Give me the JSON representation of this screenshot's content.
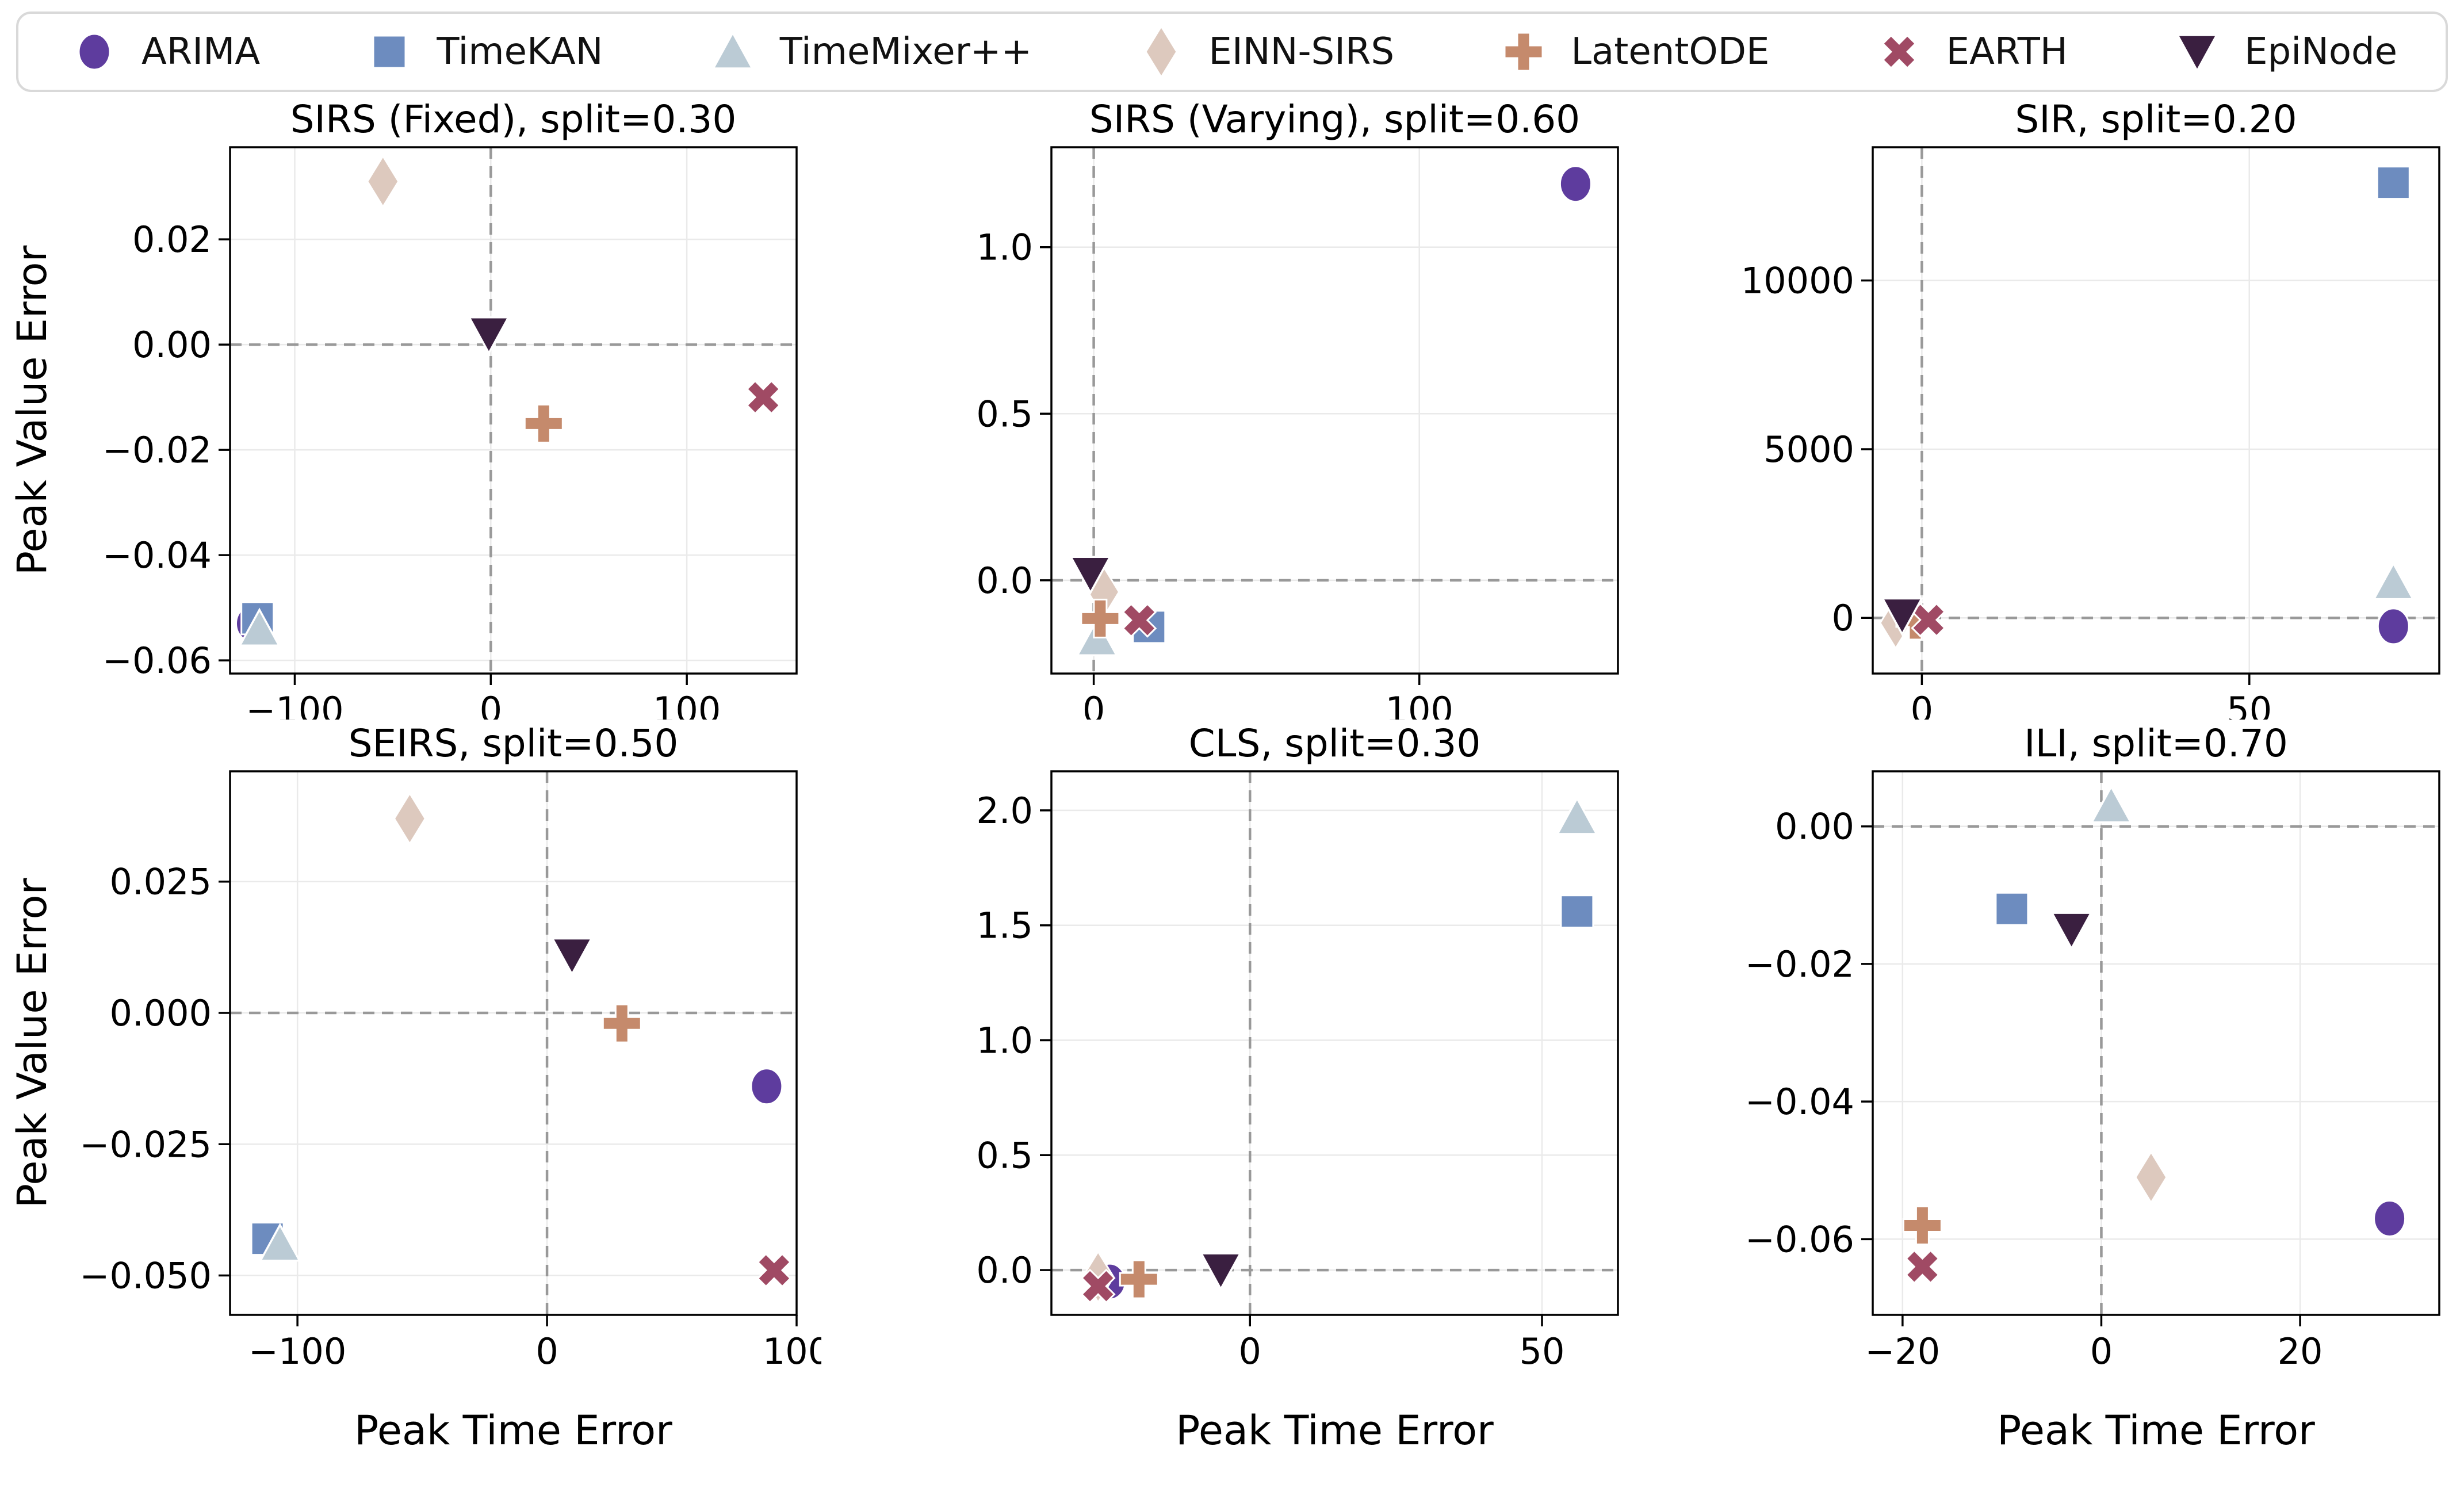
{
  "legend": {
    "items": [
      {
        "label": "ARIMA",
        "marker": "circle",
        "color": "#5e3c9e"
      },
      {
        "label": "TimeKAN",
        "marker": "square",
        "color": "#6d8cbf"
      },
      {
        "label": "TimeMixer++",
        "marker": "triangle-up",
        "color": "#bbcbd5"
      },
      {
        "label": "EINN-SIRS",
        "marker": "diamond",
        "color": "#ddc9be"
      },
      {
        "label": "LatentODE",
        "marker": "plus",
        "color": "#c58a6c"
      },
      {
        "label": "EARTH",
        "marker": "x",
        "color": "#a04a64"
      },
      {
        "label": "EpiNode",
        "marker": "triangle-down",
        "color": "#3a1f40"
      }
    ]
  },
  "axis_labels": {
    "x": "Peak Time Error",
    "y": "Peak Value Error"
  },
  "style": {
    "grid_color": "#eaeaea",
    "zero_line_color": "#999999",
    "spine_color": "#000000",
    "marker_edge": "#ffffff"
  },
  "chart_data": [
    {
      "type": "scatter",
      "title": "SIRS (Fixed), split=0.30",
      "xlabel": "",
      "ylabel": "Peak Value Error",
      "xlim": [
        -133,
        156
      ],
      "ylim": [
        -0.0625,
        0.0375
      ],
      "xticks": [
        -100,
        0,
        100
      ],
      "xtick_labels": [
        "−100",
        "0",
        "100"
      ],
      "yticks": [
        0.02,
        0.0,
        -0.02,
        -0.04,
        -0.06
      ],
      "ytick_labels": [
        "0.02",
        "0.00",
        "−0.02",
        "−0.04",
        "−0.06"
      ],
      "grid": true,
      "zero_lines": true,
      "series": [
        {
          "name": "ARIMA",
          "x": -122,
          "y": -0.053
        },
        {
          "name": "TimeKAN",
          "x": -119,
          "y": -0.052
        },
        {
          "name": "TimeMixer++",
          "x": -118,
          "y": -0.054
        },
        {
          "name": "EINN-SIRS",
          "x": -55,
          "y": 0.031
        },
        {
          "name": "LatentODE",
          "x": 27,
          "y": -0.015
        },
        {
          "name": "EARTH",
          "x": 139,
          "y": -0.01
        },
        {
          "name": "EpiNode",
          "x": -1,
          "y": 0.002
        }
      ]
    },
    {
      "type": "scatter",
      "title": "SIRS (Varying), split=0.60",
      "xlabel": "",
      "ylabel": "",
      "xlim": [
        -13,
        161
      ],
      "ylim": [
        -0.28,
        1.3
      ],
      "xticks": [
        0,
        100
      ],
      "xtick_labels": [
        "0",
        "100"
      ],
      "yticks": [
        1.0,
        0.5,
        0.0
      ],
      "ytick_labels": [
        "1.0",
        "0.5",
        "0.0"
      ],
      "grid": true,
      "zero_lines": true,
      "series": [
        {
          "name": "ARIMA",
          "x": 148,
          "y": 1.19
        },
        {
          "name": "TimeKAN",
          "x": 17,
          "y": -0.14
        },
        {
          "name": "TimeMixer++",
          "x": 1,
          "y": -0.175
        },
        {
          "name": "EINN-SIRS",
          "x": 3,
          "y": -0.035
        },
        {
          "name": "LatentODE",
          "x": 2,
          "y": -0.115
        },
        {
          "name": "EARTH",
          "x": 14,
          "y": -0.12
        },
        {
          "name": "EpiNode",
          "x": -1,
          "y": 0.02
        }
      ]
    },
    {
      "type": "scatter",
      "title": "SIR, split=0.20",
      "xlabel": "",
      "ylabel": "",
      "xlim": [
        -7.5,
        79
      ],
      "ylim": [
        -1650,
        13950
      ],
      "xticks": [
        0,
        50
      ],
      "xtick_labels": [
        "0",
        "50"
      ],
      "yticks": [
        10000,
        5000,
        0
      ],
      "ytick_labels": [
        "10000",
        "5000",
        "0"
      ],
      "grid": true,
      "zero_lines": true,
      "series": [
        {
          "name": "ARIMA",
          "x": 72,
          "y": -250
        },
        {
          "name": "TimeKAN",
          "x": 72,
          "y": 12900
        },
        {
          "name": "TimeMixer++",
          "x": 72,
          "y": 1050
        },
        {
          "name": "EINN-SIRS",
          "x": -4,
          "y": -150
        },
        {
          "name": "LatentODE",
          "x": -1,
          "y": -80
        },
        {
          "name": "EARTH",
          "x": 1,
          "y": -60
        },
        {
          "name": "EpiNode",
          "x": -3,
          "y": 80
        }
      ]
    },
    {
      "type": "scatter",
      "title": "SEIRS, split=0.50",
      "xlabel": "Peak Time Error",
      "ylabel": "Peak Value Error",
      "xlim": [
        -127,
        100
      ],
      "ylim": [
        -0.0575,
        0.046
      ],
      "xticks": [
        -100,
        0,
        100
      ],
      "xtick_labels": [
        "−100",
        "0",
        "100"
      ],
      "yticks": [
        0.025,
        0.0,
        -0.025,
        -0.05
      ],
      "ytick_labels": [
        "0.025",
        "0.000",
        "−0.025",
        "−0.050"
      ],
      "grid": true,
      "zero_lines": true,
      "series": [
        {
          "name": "ARIMA",
          "x": 88,
          "y": -0.014
        },
        {
          "name": "TimeKAN",
          "x": -112,
          "y": -0.043
        },
        {
          "name": "TimeMixer++",
          "x": -107,
          "y": -0.044
        },
        {
          "name": "EINN-SIRS",
          "x": -55,
          "y": 0.037
        },
        {
          "name": "LatentODE",
          "x": 30,
          "y": -0.002
        },
        {
          "name": "EARTH",
          "x": 91,
          "y": -0.049
        },
        {
          "name": "EpiNode",
          "x": 10,
          "y": 0.011
        }
      ]
    },
    {
      "type": "scatter",
      "title": "CLS, split=0.30",
      "xlabel": "Peak Time Error",
      "ylabel": "",
      "xlim": [
        -34,
        63
      ],
      "ylim": [
        -0.195,
        2.17
      ],
      "xticks": [
        0,
        50
      ],
      "xtick_labels": [
        "0",
        "50"
      ],
      "yticks": [
        2.0,
        1.5,
        1.0,
        0.5,
        0.0
      ],
      "ytick_labels": [
        "2.0",
        "1.5",
        "1.0",
        "0.5",
        "0.0"
      ],
      "grid": true,
      "zero_lines": true,
      "series": [
        {
          "name": "ARIMA",
          "x": -24,
          "y": -0.05
        },
        {
          "name": "TimeKAN",
          "x": 56,
          "y": 1.56
        },
        {
          "name": "TimeMixer++",
          "x": 56,
          "y": 1.97
        },
        {
          "name": "EINN-SIRS",
          "x": -26,
          "y": -0.03
        },
        {
          "name": "LatentODE",
          "x": -19,
          "y": -0.04
        },
        {
          "name": "EARTH",
          "x": -26,
          "y": -0.07
        },
        {
          "name": "EpiNode",
          "x": -5,
          "y": 0.0
        }
      ]
    },
    {
      "type": "scatter",
      "title": "ILI, split=0.70",
      "xlabel": "Peak Time Error",
      "ylabel": "",
      "xlim": [
        -23,
        34
      ],
      "ylim": [
        -0.071,
        0.008
      ],
      "xticks": [
        -20,
        0,
        20
      ],
      "xtick_labels": [
        "−20",
        "0",
        "20"
      ],
      "yticks": [
        0.0,
        -0.02,
        -0.04,
        -0.06
      ],
      "ytick_labels": [
        "0.00",
        "−0.02",
        "−0.04",
        "−0.06"
      ],
      "grid": true,
      "zero_lines": true,
      "series": [
        {
          "name": "ARIMA",
          "x": 29,
          "y": -0.057
        },
        {
          "name": "TimeKAN",
          "x": -9,
          "y": -0.012
        },
        {
          "name": "TimeMixer++",
          "x": 1,
          "y": 0.003
        },
        {
          "name": "EINN-SIRS",
          "x": 5,
          "y": -0.051
        },
        {
          "name": "LatentODE",
          "x": -18,
          "y": -0.058
        },
        {
          "name": "EARTH",
          "x": -18,
          "y": -0.064
        },
        {
          "name": "EpiNode",
          "x": -3,
          "y": -0.015
        }
      ]
    }
  ]
}
